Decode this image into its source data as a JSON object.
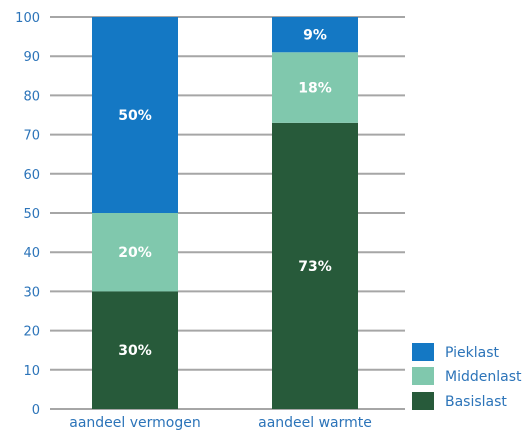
{
  "chart_data": {
    "type": "bar",
    "stacked": true,
    "categories": [
      "aandeel vermogen",
      "aandeel warmte"
    ],
    "series": [
      {
        "name": "Basislast",
        "values": [
          30,
          73
        ],
        "labels": [
          "30%",
          "73%"
        ],
        "color": "#275a3a"
      },
      {
        "name": "Middenlast",
        "values": [
          20,
          18
        ],
        "labels": [
          "20%",
          "18%"
        ],
        "color": "#80c8ad"
      },
      {
        "name": "Pieklast",
        "values": [
          50,
          9
        ],
        "labels": [
          "50%",
          "9%"
        ],
        "color": "#1478c4"
      }
    ],
    "ylim": [
      0,
      100
    ],
    "yticks": [
      "0",
      "10",
      "20",
      "30",
      "40",
      "50",
      "60",
      "70",
      "80",
      "90",
      "100"
    ],
    "grid": true,
    "legend_position": "bottom-right",
    "legend_order": [
      "Pieklast",
      "Middenlast",
      "Basislast"
    ],
    "text_color": "#2c74b9",
    "grid_color": "#a6a6a6"
  }
}
